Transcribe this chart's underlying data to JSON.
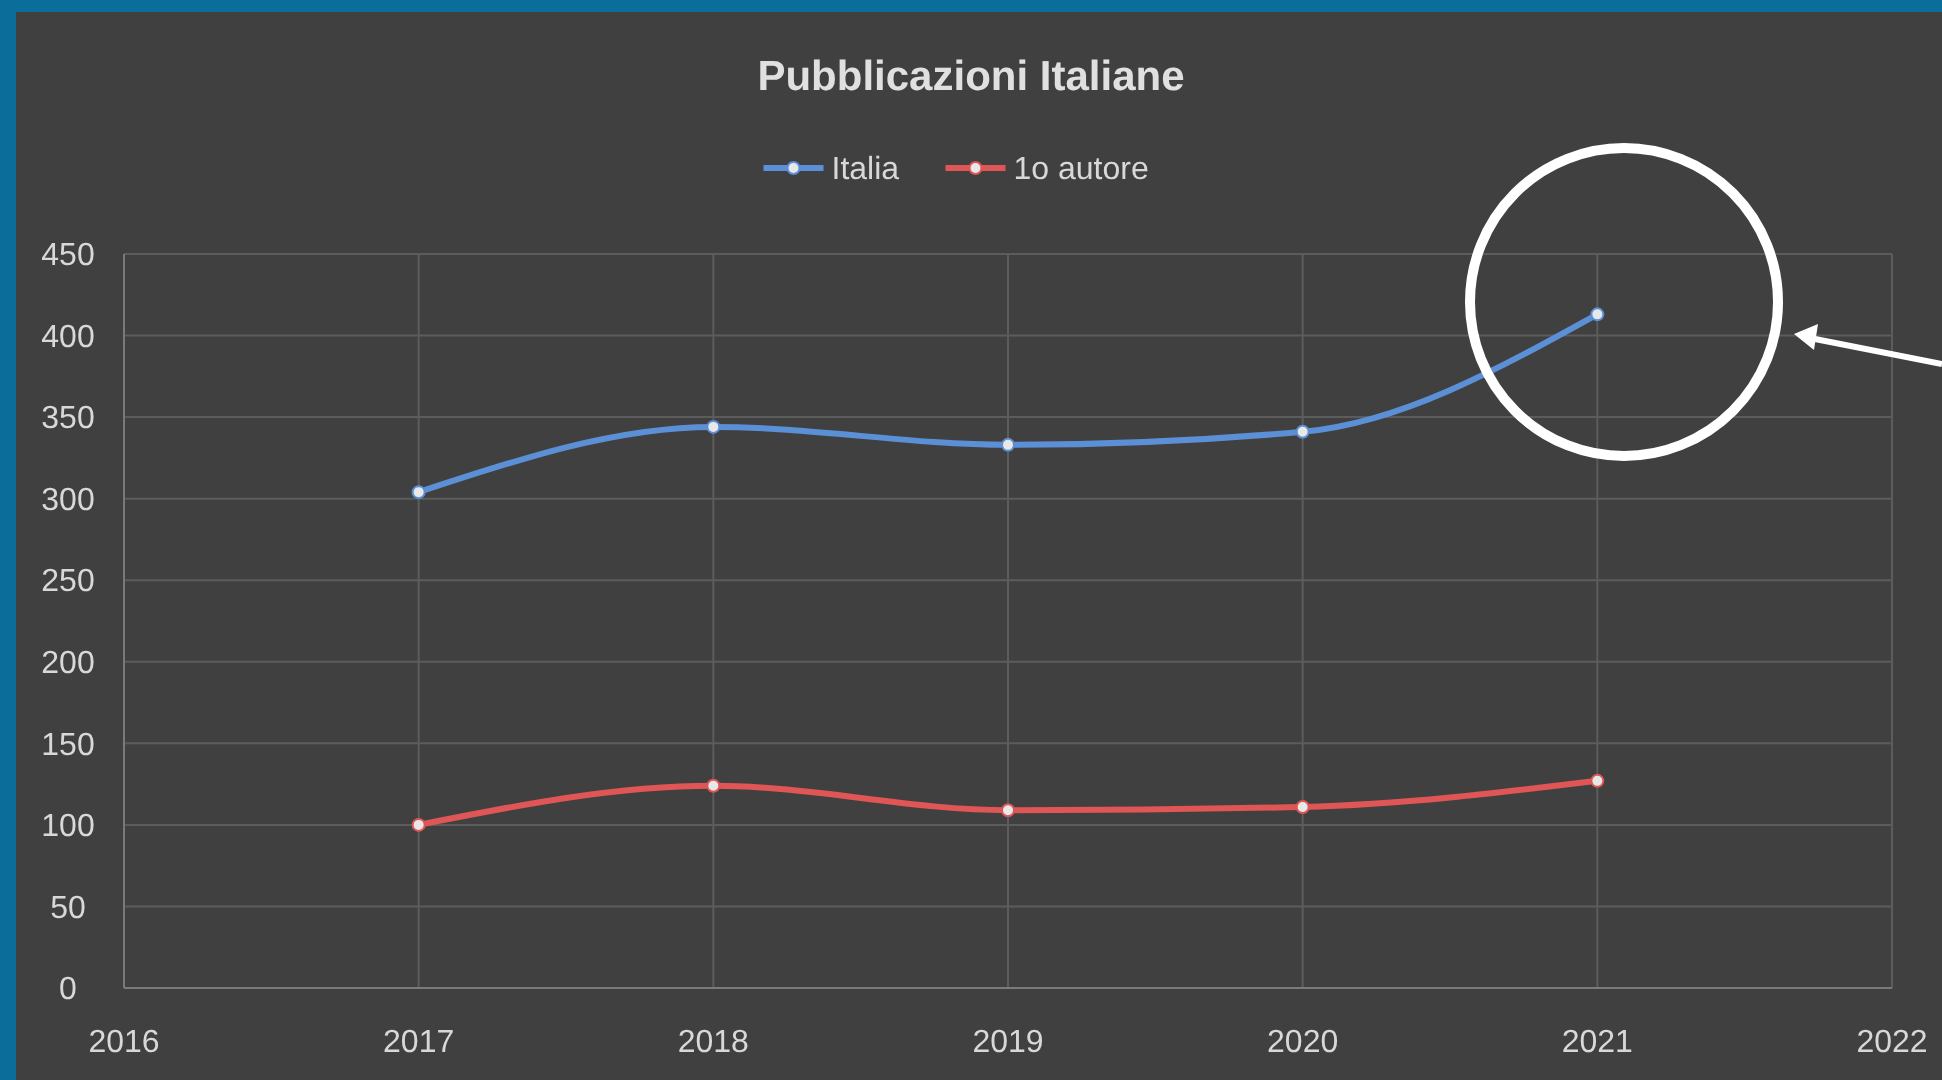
{
  "chart_data": {
    "type": "line",
    "title": "Pubblicazioni Italiane",
    "x": [
      2017,
      2018,
      2019,
      2020,
      2021
    ],
    "series": [
      {
        "name": "Italia",
        "color": "#5b8fd6",
        "values": [
          304,
          344,
          333,
          341,
          413
        ]
      },
      {
        "name": "1o autore",
        "color": "#e05555",
        "values": [
          100,
          124,
          109,
          111,
          127
        ]
      }
    ],
    "xlim": [
      2016,
      2022
    ],
    "xticks": [
      2016,
      2017,
      2018,
      2019,
      2020,
      2021,
      2022
    ],
    "ylim": [
      0,
      450
    ],
    "yticks": [
      0,
      50,
      100,
      150,
      200,
      250,
      300,
      350,
      400,
      450
    ],
    "grid": true,
    "legend": "top",
    "marker": "circle",
    "line_style": "solid"
  }
}
